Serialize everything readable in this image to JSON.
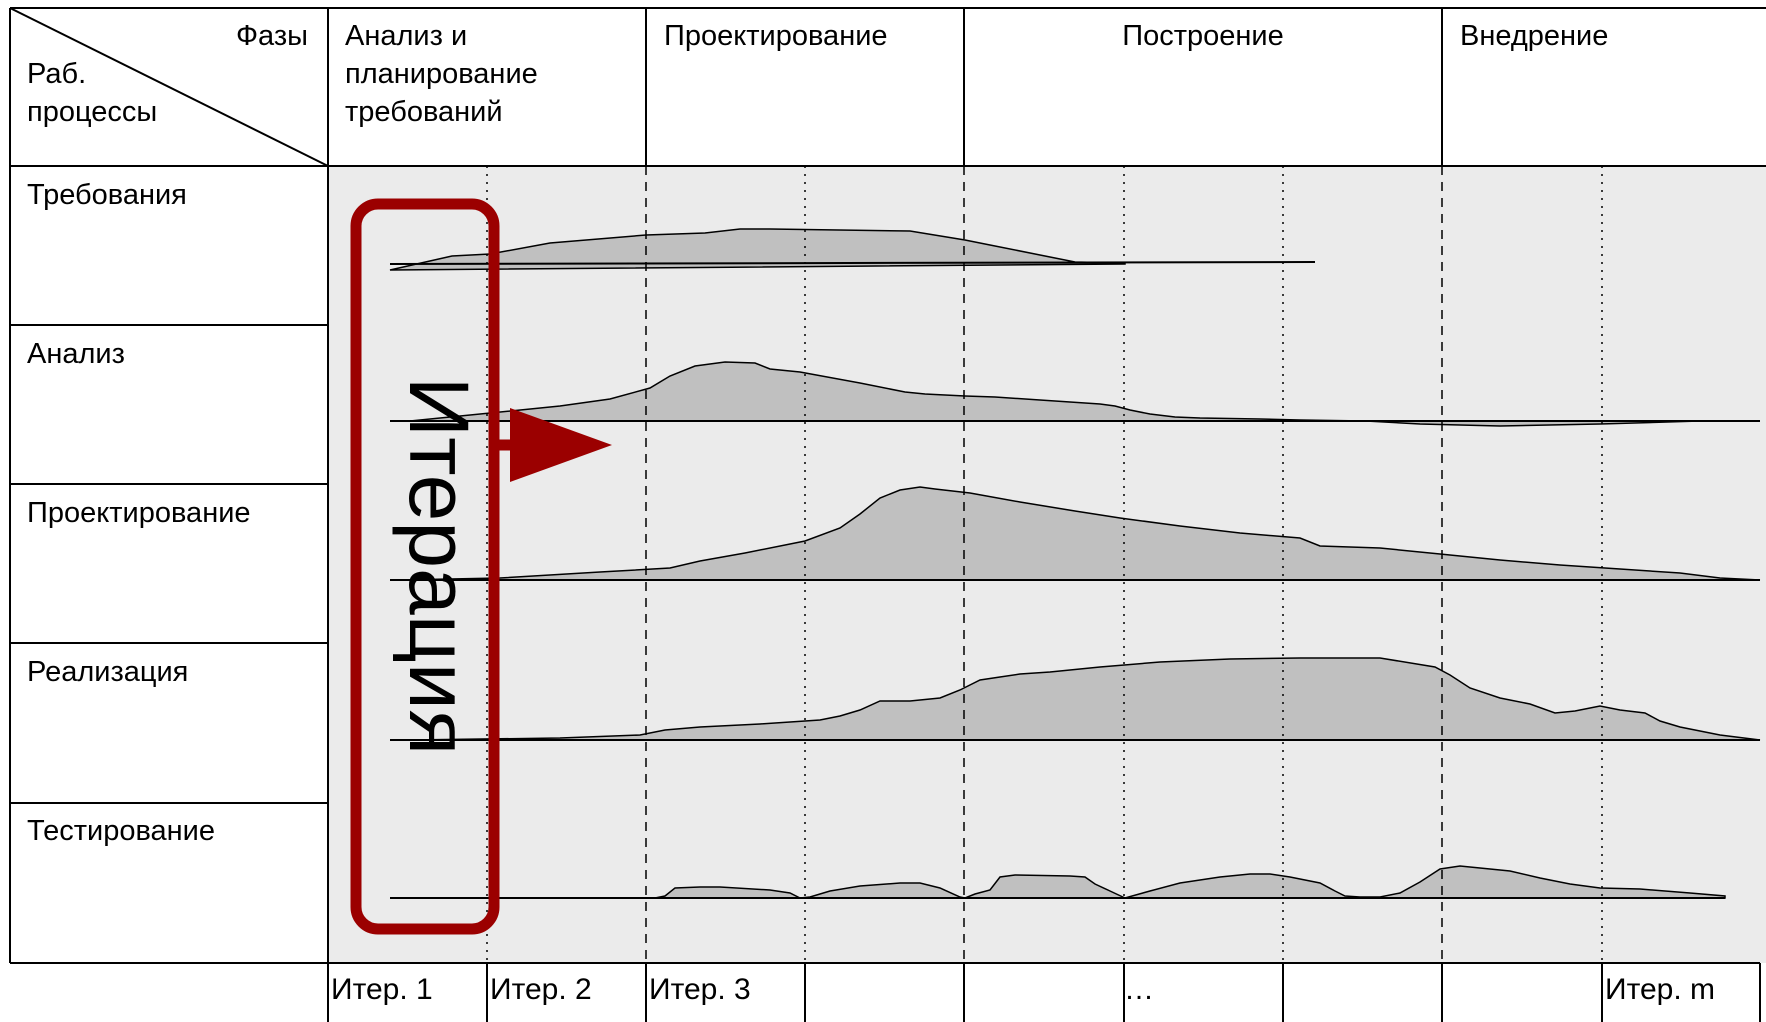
{
  "header": {
    "corner_top": "Фазы",
    "corner_bottom": [
      "Раб.",
      "процессы"
    ],
    "phases": [
      {
        "lines": [
          "Анализ и",
          "планирование",
          "требований"
        ]
      },
      {
        "lines": [
          "Проектирование"
        ]
      },
      {
        "lines": [
          "Построение"
        ]
      },
      {
        "lines": [
          "Внедрение"
        ]
      }
    ]
  },
  "workflows": [
    "Требования",
    "Анализ",
    "Проектирование",
    "Реализация",
    "Тестирование"
  ],
  "iterations": [
    "Итер. 1",
    "Итер. 2",
    "Итер. 3",
    "",
    "",
    "…",
    "",
    "",
    "Итер. m",
    ""
  ],
  "iteration_marker": {
    "label": "Итерация"
  },
  "colors": {
    "background": "#ebebeb",
    "area_fill": "#c0c0c0",
    "line": "#000000",
    "accent": "#9b0000"
  }
}
